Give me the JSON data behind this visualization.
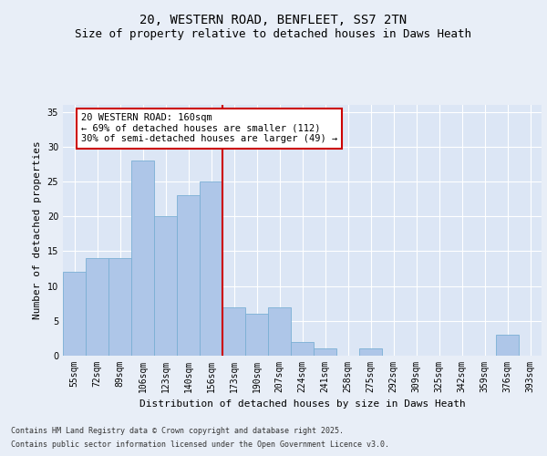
{
  "title1": "20, WESTERN ROAD, BENFLEET, SS7 2TN",
  "title2": "Size of property relative to detached houses in Daws Heath",
  "xlabel": "Distribution of detached houses by size in Daws Heath",
  "ylabel": "Number of detached properties",
  "categories": [
    "55sqm",
    "72sqm",
    "89sqm",
    "106sqm",
    "123sqm",
    "140sqm",
    "156sqm",
    "173sqm",
    "190sqm",
    "207sqm",
    "224sqm",
    "241sqm",
    "258sqm",
    "275sqm",
    "292sqm",
    "309sqm",
    "325sqm",
    "342sqm",
    "359sqm",
    "376sqm",
    "393sqm"
  ],
  "values": [
    12,
    14,
    14,
    28,
    20,
    23,
    25,
    7,
    6,
    7,
    2,
    1,
    0,
    1,
    0,
    0,
    0,
    0,
    0,
    3,
    0
  ],
  "bar_color": "#aec6e8",
  "bar_edge_color": "#7aafd4",
  "vline_x": 6.5,
  "vline_color": "#cc0000",
  "annotation_text": "20 WESTERN ROAD: 160sqm\n← 69% of detached houses are smaller (112)\n30% of semi-detached houses are larger (49) →",
  "annotation_box_color": "#cc0000",
  "ylim": [
    0,
    36
  ],
  "yticks": [
    0,
    5,
    10,
    15,
    20,
    25,
    30,
    35
  ],
  "bg_color": "#e8eef7",
  "plot_bg_color": "#dce6f5",
  "footer1": "Contains HM Land Registry data © Crown copyright and database right 2025.",
  "footer2": "Contains public sector information licensed under the Open Government Licence v3.0.",
  "title_fontsize": 10,
  "subtitle_fontsize": 9,
  "axis_label_fontsize": 8,
  "tick_fontsize": 7,
  "annotation_fontsize": 7.5
}
